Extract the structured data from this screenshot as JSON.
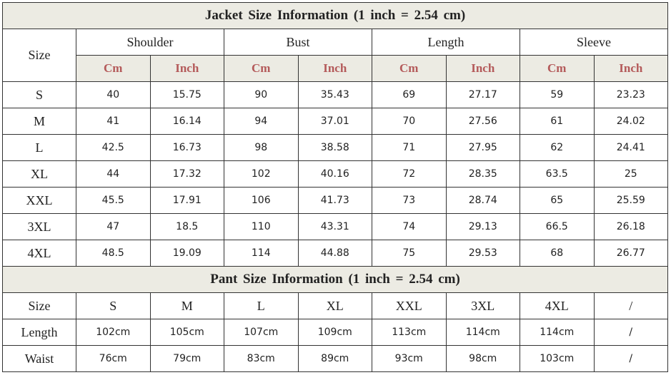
{
  "jacket": {
    "title": "Jacket  Size  Information  (1 inch = 2.54 cm)",
    "size_label": "Size",
    "groups": [
      "Shoulder",
      "Bust",
      "Length",
      "Sleeve"
    ],
    "units": [
      "Cm",
      "Inch"
    ],
    "rows": [
      [
        "S",
        "40",
        "15.75",
        "90",
        "35.43",
        "69",
        "27.17",
        "59",
        "23.23"
      ],
      [
        "M",
        "41",
        "16.14",
        "94",
        "37.01",
        "70",
        "27.56",
        "61",
        "24.02"
      ],
      [
        "L",
        "42.5",
        "16.73",
        "98",
        "38.58",
        "71",
        "27.95",
        "62",
        "24.41"
      ],
      [
        "XL",
        "44",
        "17.32",
        "102",
        "40.16",
        "72",
        "28.35",
        "63.5",
        "25"
      ],
      [
        "XXL",
        "45.5",
        "17.91",
        "106",
        "41.73",
        "73",
        "28.74",
        "65",
        "25.59"
      ],
      [
        "3XL",
        "47",
        "18.5",
        "110",
        "43.31",
        "74",
        "29.13",
        "66.5",
        "26.18"
      ],
      [
        "4XL",
        "48.5",
        "19.09",
        "114",
        "44.88",
        "75",
        "29.53",
        "68",
        "26.77"
      ]
    ]
  },
  "pant": {
    "title": "Pant  Size  Information  (1 inch = 2.54 cm)",
    "rows": [
      [
        "Size",
        "S",
        "M",
        "L",
        "XL",
        "XXL",
        "3XL",
        "4XL",
        "/"
      ],
      [
        "Length",
        "102cm",
        "105cm",
        "107cm",
        "109cm",
        "113cm",
        "114cm",
        "114cm",
        "/"
      ],
      [
        "Waist",
        "76cm",
        "79cm",
        "83cm",
        "89cm",
        "93cm",
        "98cm",
        "103cm",
        "/"
      ]
    ]
  },
  "colors": {
    "header_bg": "#ecebe3",
    "unit_text": "#b45a5a",
    "border": "#333333"
  }
}
